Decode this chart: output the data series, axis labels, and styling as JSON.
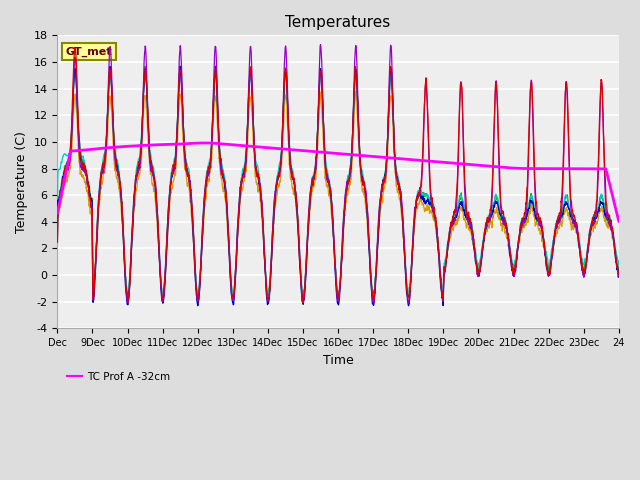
{
  "title": "Temperatures",
  "xlabel": "Time",
  "ylabel": "Temperature (C)",
  "ylim": [
    -4,
    18
  ],
  "xlim": [
    0,
    16
  ],
  "x_tick_labels": [
    "Dec",
    "9Dec",
    "10Dec",
    "11Dec",
    "12Dec",
    "13Dec",
    "14Dec",
    "15Dec",
    "16Dec",
    "17Dec",
    "18Dec",
    "19Dec",
    "20Dec",
    "21Dec",
    "22Dec",
    "23Dec",
    "24"
  ],
  "series_colors": {
    "PanelT": "#dd0000",
    "AM25T_PRT": "#0000cc",
    "AirT": "#00bb00",
    "NR01_PRT": "#dd9900",
    "li75_t": "#9900cc",
    "li77_temp": "#00cccc",
    "TC_Prof": "#ff00ff"
  },
  "plot_bg_color": "#eeeeee",
  "fig_bg_color": "#dddddd",
  "legend_label": "GT_met",
  "legend_bg": "#ffff99",
  "legend_border": "#888800",
  "yticks": [
    -4,
    -2,
    0,
    2,
    4,
    6,
    8,
    10,
    12,
    14,
    16,
    18
  ],
  "grid_color": "#ffffff",
  "title_fontsize": 11,
  "axis_fontsize": 9,
  "tick_fontsize": 7
}
